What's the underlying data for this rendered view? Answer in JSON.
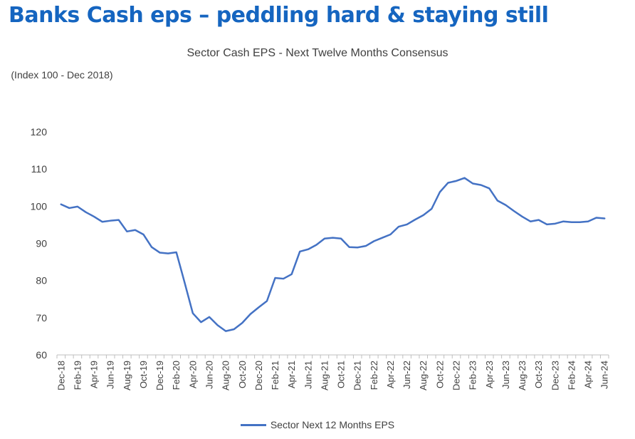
{
  "headline": "Banks Cash eps – peddling hard & staying still",
  "colors": {
    "headline": "#1565c0",
    "series": "#4472c4",
    "text": "#404040",
    "axis": "#bfbfbf"
  },
  "chart_data": {
    "type": "line",
    "title": "Sector Cash EPS - Next Twelve Months Consensus",
    "ylabel": "(Index 100 - Dec 2018)",
    "xlabel": "",
    "ylim": [
      60,
      120
    ],
    "yticks": [
      60,
      70,
      80,
      90,
      100,
      110,
      120
    ],
    "grid": false,
    "legend_position": "bottom",
    "x": [
      "Dec-18",
      "Jan-19",
      "Feb-19",
      "Mar-19",
      "Apr-19",
      "May-19",
      "Jun-19",
      "Jul-19",
      "Aug-19",
      "Sep-19",
      "Oct-19",
      "Nov-19",
      "Dec-19",
      "Jan-20",
      "Feb-20",
      "Mar-20",
      "Apr-20",
      "May-20",
      "Jun-20",
      "Jul-20",
      "Aug-20",
      "Sep-20",
      "Oct-20",
      "Nov-20",
      "Dec-20",
      "Jan-21",
      "Feb-21",
      "Mar-21",
      "Apr-21",
      "May-21",
      "Jun-21",
      "Jul-21",
      "Aug-21",
      "Sep-21",
      "Oct-21",
      "Nov-21",
      "Dec-21",
      "Jan-22",
      "Feb-22",
      "Mar-22",
      "Apr-22",
      "May-22",
      "Jun-22",
      "Jul-22",
      "Aug-22",
      "Sep-22",
      "Oct-22",
      "Nov-22",
      "Dec-22",
      "Jan-23",
      "Feb-23",
      "Mar-23",
      "Apr-23",
      "May-23",
      "Jun-23",
      "Jul-23",
      "Aug-23",
      "Sep-23",
      "Oct-23",
      "Nov-23",
      "Dec-23",
      "Jan-24",
      "Feb-24",
      "Mar-24",
      "Apr-24",
      "May-24",
      "Jun-24"
    ],
    "xtick_labels": [
      "Dec-18",
      "Feb-19",
      "Apr-19",
      "Jun-19",
      "Aug-19",
      "Oct-19",
      "Dec-19",
      "Feb-20",
      "Apr-20",
      "Jun-20",
      "Aug-20",
      "Oct-20",
      "Dec-20",
      "Feb-21",
      "Apr-21",
      "Jun-21",
      "Aug-21",
      "Oct-21",
      "Dec-21",
      "Feb-22",
      "Apr-22",
      "Jun-22",
      "Aug-22",
      "Oct-22",
      "Dec-22",
      "Feb-23",
      "Apr-23",
      "Jun-23",
      "Aug-23",
      "Oct-23",
      "Dec-23",
      "Feb-24",
      "Apr-24",
      "Jun-24"
    ],
    "series": [
      {
        "name": "Sector Next 12 Months EPS",
        "values": [
          100.5,
          99.5,
          99.9,
          98.4,
          97.2,
          95.8,
          96.1,
          96.3,
          93.2,
          93.6,
          92.4,
          89.0,
          87.5,
          87.3,
          87.6,
          79.5,
          71.2,
          68.8,
          70.2,
          68.0,
          66.4,
          66.9,
          68.6,
          71.0,
          72.8,
          74.5,
          80.7,
          80.5,
          81.7,
          87.8,
          88.4,
          89.6,
          91.3,
          91.5,
          91.3,
          89.0,
          88.9,
          89.3,
          90.6,
          91.5,
          92.4,
          94.5,
          95.1,
          96.4,
          97.6,
          99.3,
          103.8,
          106.3,
          106.8,
          107.6,
          106.1,
          105.7,
          104.8,
          101.5,
          100.3,
          98.7,
          97.2,
          95.9,
          96.3,
          95.1,
          95.3,
          95.9,
          95.7,
          95.7,
          95.9,
          96.9,
          96.7
        ]
      }
    ]
  }
}
